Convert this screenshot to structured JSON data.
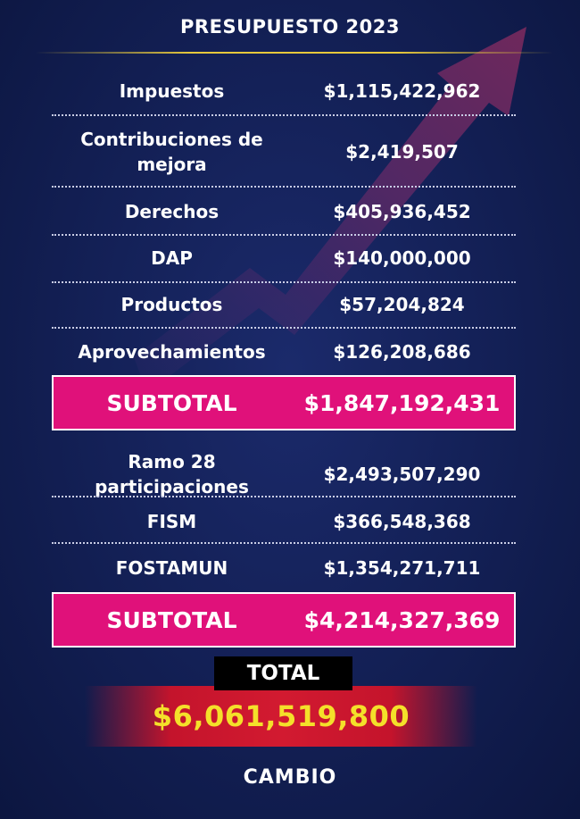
{
  "title": "PRESUPUESTO 2023",
  "rows_group1": [
    {
      "label": "Impuestos",
      "value": "$1,115,422,962"
    },
    {
      "label": "Contribuciones de mejora",
      "value": "$2,419,507"
    },
    {
      "label": "Derechos",
      "value": "$405,936,452"
    },
    {
      "label": "DAP",
      "value": "$140,000,000"
    },
    {
      "label": "Productos",
      "value": "$57,204,824"
    },
    {
      "label": "Aprovechamientos",
      "value": "$126,208,686"
    }
  ],
  "subtotal1": {
    "label": "SUBTOTAL",
    "value": "$1,847,192,431"
  },
  "rows_group2": [
    {
      "label": "Ramo 28 participaciones",
      "value": "$2,493,507,290"
    },
    {
      "label": "FISM",
      "value": "$366,548,368"
    },
    {
      "label": "FOSTAMUN",
      "value": "$1,354,271,711"
    }
  ],
  "subtotal2": {
    "label": "SUBTOTAL",
    "value": "$4,214,327,369"
  },
  "total": {
    "label": "TOTAL",
    "value": "$6,061,519,800"
  },
  "brand": "CAMBIO",
  "colors": {
    "background": "#142158",
    "subtotal_bg": "#e0117a",
    "total_value": "#f4e02a",
    "title_line": "#e6c83c",
    "arrow": "#5a2a6e"
  },
  "icons": [
    "rising-arrow-icon"
  ]
}
